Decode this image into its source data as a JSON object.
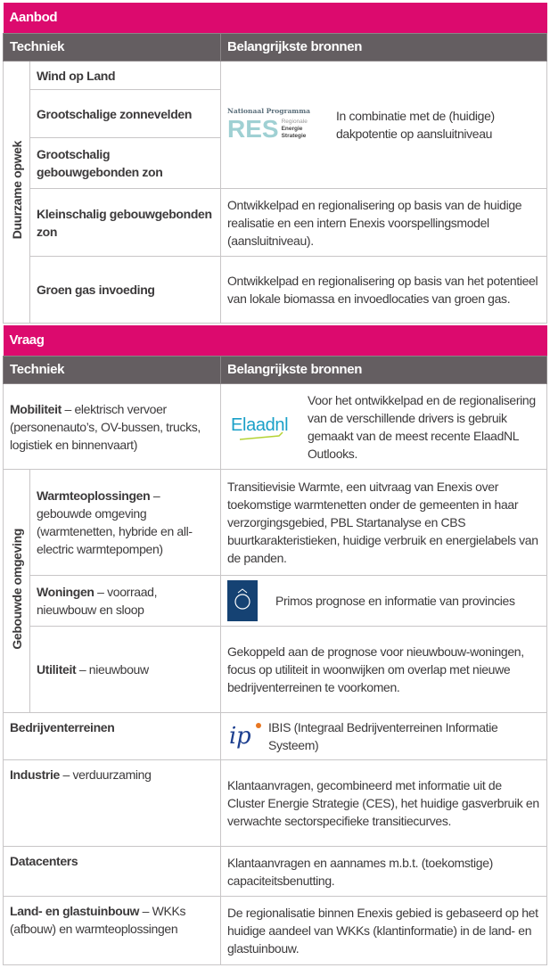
{
  "aanbod": {
    "title": "Aanbod",
    "col_techniek": "Techniek",
    "col_bronnen": "Belangrijkste bronnen",
    "group_label": "Duurzame opwek",
    "rows": [
      {
        "techniek": "Wind op Land"
      },
      {
        "techniek": "Grootschalige zonnevelden"
      },
      {
        "techniek": "Grootschalig gebouwgebonden zon"
      },
      {
        "techniek": "Kleinschalig gebouwgebonden zon",
        "bron": "Ontwikkelpad en regionalisering op basis van de huidige realisatie en een intern Enexis voorspellingsmodel (aansluitniveau)."
      },
      {
        "techniek": "Groen gas invoeding",
        "bron": "Ontwikkelpad en regionalisering op basis van het potentieel van lokale biomassa en invoedlocaties van groen gas."
      }
    ],
    "res_bron": "In combinatie met de (huidige) dakpotentie op aansluitniveau",
    "res_logo": {
      "top": "Nationaal Programma",
      "main": "RES",
      "l1": "Regionale",
      "l2": "Energie",
      "l3": "Strategie"
    }
  },
  "vraag": {
    "title": "Vraag",
    "col_techniek": "Techniek",
    "col_bronnen": "Belangrijkste bronnen",
    "group_label": "Gebouwde omgeving",
    "mobiliteit": {
      "bold": "Mobiliteit",
      "rest": " – elektrisch vervoer (personenauto’s, OV-bussen, trucks, logistiek en binnenvaart)",
      "logo": "Elaadnl",
      "bron": "Voor het ontwikkelpad en de regionalisering van de verschillende drivers is gebruik gemaakt van de meest recente ElaadNL Outlooks."
    },
    "warmte": {
      "bold": "Warmteoplossingen",
      "rest": " – gebouwde omgeving (warmtenetten, hybride en all-electric warmtepompen)",
      "bron": "Transitievisie Warmte, een uitvraag van Enexis over toekomstige warmtenetten onder de gemeenten in haar verzorgingsgebied, PBL Startanalyse en CBS buurtkarakteristieken, huidige verbruik en energielabels van de panden."
    },
    "woningen": {
      "bold": "Woningen",
      "rest": " – voorraad, nieuwbouw en sloop",
      "bron": "Primos prognose en informatie van provincies"
    },
    "utiliteit": {
      "bold": "Utiliteit",
      "rest": " – nieuwbouw",
      "bron": "Gekoppeld aan de prognose voor nieuwbouw-woningen, focus op utiliteit in woonwijken om overlap met nieuwe bedrijventerreinen te voorkomen."
    },
    "bedrijven": {
      "bold": "Bedrijventerreinen",
      "rest": "",
      "logo": "ip",
      "bron": "IBIS (Integraal Bedrijventerreinen Informatie Systeem)"
    },
    "industrie": {
      "bold": "Industrie",
      "rest": " – verduurzaming",
      "bron": "Klantaanvragen, gecombineerd met informatie uit de Cluster Energie Strategie (CES), het huidige gasverbruik en verwachte sectorspecifieke transitiecurves."
    },
    "datacenters": {
      "bold": "Datacenters",
      "rest": "",
      "bron": "Klantaanvragen en aannames m.b.t. (toekomstige) capaciteitsbenutting."
    },
    "glas": {
      "bold": "Land- en glastuinbouw",
      "rest": " – WKKs (afbouw) en warmteoplossingen",
      "bron": "De regionalisatie binnen Enexis gebied is gebaseerd op het huidige aandeel van WKKs (klantinformatie) in de land- en glastuinbouw."
    }
  },
  "colors": {
    "section": "#dc0a6e",
    "header": "#645e61",
    "border": "#c8c6c7"
  }
}
